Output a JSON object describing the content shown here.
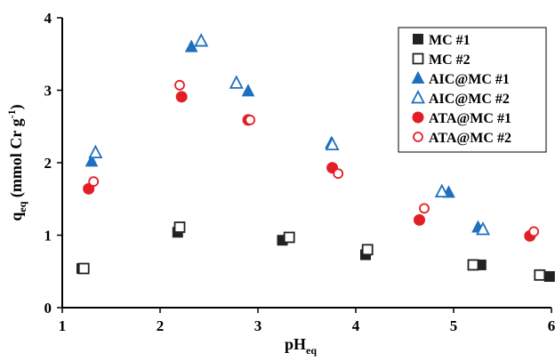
{
  "chart_data": {
    "type": "scatter",
    "xlabel": "pH",
    "xlabel_sub": "eq",
    "ylabel_parts": {
      "q": "q",
      "q_sub": "eq",
      "units": " (mmol Cr g",
      "units_sup": "-1",
      "close": ")"
    },
    "xlim": [
      1,
      6
    ],
    "ylim": [
      0,
      4
    ],
    "x_ticks": [
      "1",
      "2",
      "3",
      "4",
      "5",
      "6"
    ],
    "y_ticks": [
      "0",
      "1",
      "2",
      "3",
      "4"
    ],
    "grid": false,
    "legend_position": "top-right",
    "series": [
      {
        "name": "MC #1",
        "marker": "square",
        "filled": true,
        "color": "#222222",
        "points": [
          [
            1.2,
            0.54
          ],
          [
            2.18,
            1.04
          ],
          [
            3.25,
            0.93
          ],
          [
            4.1,
            0.73
          ],
          [
            5.28,
            0.59
          ],
          [
            5.98,
            0.43
          ]
        ]
      },
      {
        "name": "MC #2",
        "marker": "square",
        "filled": false,
        "color": "#222222",
        "points": [
          [
            1.22,
            0.54
          ],
          [
            2.2,
            1.11
          ],
          [
            3.32,
            0.97
          ],
          [
            4.12,
            0.8
          ],
          [
            5.2,
            0.59
          ],
          [
            5.88,
            0.45
          ]
        ]
      },
      {
        "name": "AIC@MC #1",
        "marker": "triangle",
        "filled": true,
        "color": "#1f6fbf",
        "points": [
          [
            1.3,
            2.02
          ],
          [
            2.32,
            3.6
          ],
          [
            2.9,
            2.99
          ],
          [
            3.75,
            2.27
          ],
          [
            4.95,
            1.59
          ],
          [
            5.25,
            1.11
          ]
        ]
      },
      {
        "name": "AIC@MC #2",
        "marker": "triangle",
        "filled": false,
        "color": "#1f6fbf",
        "points": [
          [
            1.34,
            2.14
          ],
          [
            2.42,
            3.68
          ],
          [
            2.78,
            3.1
          ],
          [
            3.76,
            2.25
          ],
          [
            4.88,
            1.6
          ],
          [
            5.3,
            1.08
          ]
        ]
      },
      {
        "name": "ATA@MC #1",
        "marker": "circle",
        "filled": true,
        "color": "#e41e26",
        "points": [
          [
            1.27,
            1.64
          ],
          [
            2.22,
            2.91
          ],
          [
            2.9,
            2.59
          ],
          [
            3.76,
            1.93
          ],
          [
            4.65,
            1.21
          ],
          [
            5.78,
            0.99
          ]
        ]
      },
      {
        "name": "ATA@MC #2",
        "marker": "circle",
        "filled": false,
        "color": "#e41e26",
        "points": [
          [
            1.32,
            1.74
          ],
          [
            2.2,
            3.07
          ],
          [
            2.92,
            2.59
          ],
          [
            3.82,
            1.85
          ],
          [
            4.7,
            1.37
          ],
          [
            5.82,
            1.05
          ]
        ]
      }
    ]
  }
}
